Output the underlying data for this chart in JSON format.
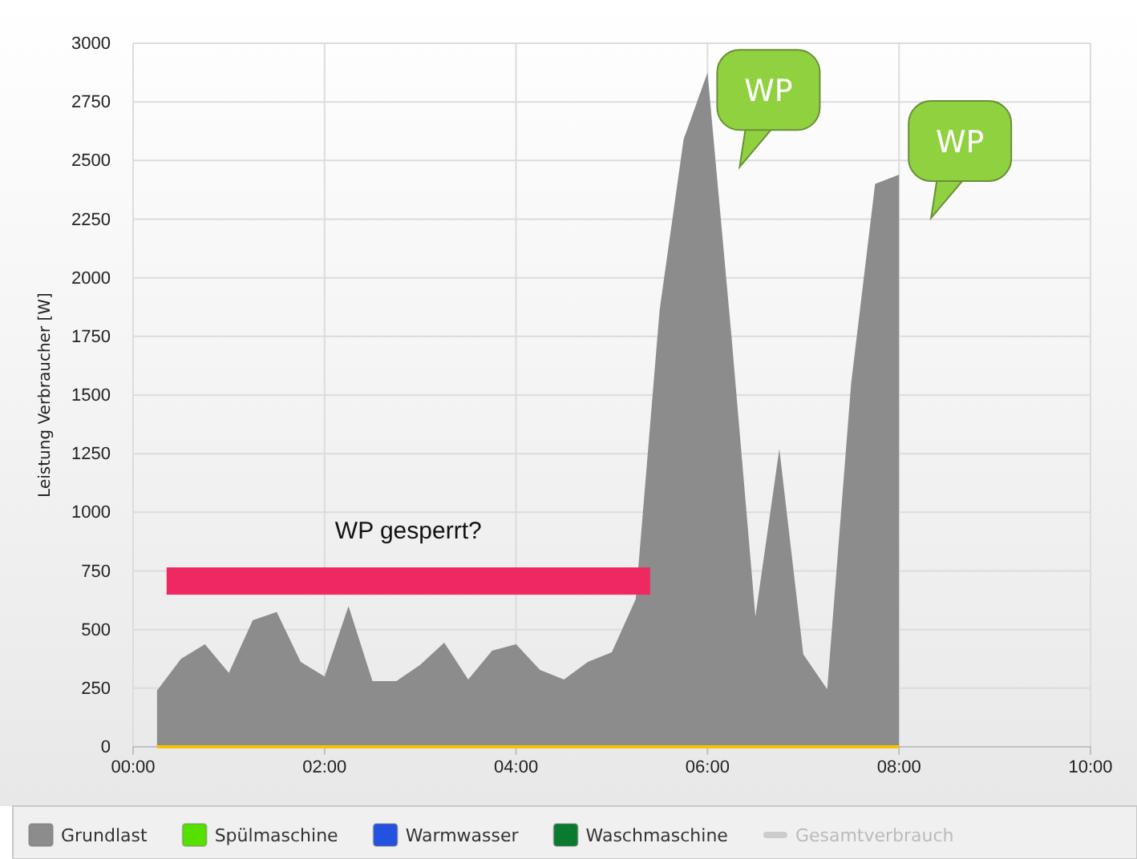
{
  "chart_data": {
    "type": "area",
    "ylabel": "Leistung Verbraucher [W]",
    "x": [
      0.25,
      0.5,
      0.75,
      1,
      1.25,
      1.5,
      1.75,
      2,
      2.25,
      2.5,
      2.75,
      3,
      3.25,
      3.5,
      3.75,
      4,
      4.25,
      4.5,
      4.75,
      5,
      5.25,
      5.5,
      5.75,
      6,
      6.25,
      6.5,
      6.75,
      7,
      7.25,
      7.5,
      7.75,
      8
    ],
    "series": [
      {
        "name": "Grundlast",
        "color": "#8c8c8c",
        "values": [
          240,
          375,
          437,
          315,
          540,
          575,
          362,
          300,
          600,
          280,
          280,
          350,
          444,
          287,
          410,
          437,
          328,
          287,
          362,
          403,
          630,
          1865,
          2590,
          2875,
          1750,
          555,
          1270,
          395,
          245,
          1550,
          2400,
          2440
        ]
      },
      {
        "name": "Spülmaschine",
        "color": "#55e000",
        "values": [
          null,
          null,
          null,
          null,
          null,
          null,
          null,
          null,
          null,
          null,
          null,
          null,
          null,
          null,
          null,
          null,
          null,
          null,
          null,
          null,
          null,
          null,
          null,
          null,
          null,
          null,
          null,
          null,
          null,
          null,
          null,
          null
        ]
      },
      {
        "name": "Warmwasser",
        "color": "#2452e0",
        "values": [
          null,
          null,
          null,
          null,
          null,
          null,
          null,
          null,
          null,
          null,
          null,
          null,
          null,
          null,
          null,
          null,
          null,
          null,
          null,
          null,
          null,
          null,
          null,
          null,
          null,
          null,
          null,
          null,
          null,
          null,
          null,
          null
        ]
      },
      {
        "name": "Waschmaschine",
        "color": "#0a7a30",
        "values": [
          null,
          null,
          null,
          null,
          null,
          null,
          null,
          null,
          null,
          null,
          null,
          null,
          null,
          null,
          null,
          null,
          null,
          null,
          null,
          null,
          null,
          null,
          null,
          null,
          null,
          null,
          null,
          null,
          null,
          null,
          null,
          null
        ]
      },
      {
        "type": "line",
        "color": "#f5c400",
        "values": [
          0,
          0,
          0,
          0,
          0,
          0,
          0,
          0,
          0,
          0,
          0,
          0,
          0,
          0,
          0,
          0,
          0,
          0,
          0,
          0,
          0,
          0,
          0,
          0,
          0,
          0,
          0,
          0,
          0,
          0,
          0,
          0
        ]
      },
      {
        "name": "Gesamtverbrauch",
        "type": "line",
        "color": "#cccccc",
        "values": [
          null,
          null,
          null,
          null,
          null,
          null,
          null,
          null,
          null,
          null,
          null,
          null,
          null,
          null,
          null,
          null,
          null,
          null,
          null,
          null,
          null,
          null,
          null,
          null,
          null,
          null,
          null,
          null,
          null,
          null,
          null,
          null
        ]
      }
    ],
    "xlim": [
      0,
      10
    ],
    "xticks": [
      {
        "value": 0,
        "label": "00:00"
      },
      {
        "value": 2,
        "label": "02:00"
      },
      {
        "value": 4,
        "label": "04:00"
      },
      {
        "value": 6,
        "label": "06:00"
      },
      {
        "value": 8,
        "label": "08:00"
      },
      {
        "value": 10,
        "label": "10:00"
      }
    ],
    "ylim": [
      0,
      3000
    ],
    "yticks": [
      0,
      250,
      500,
      750,
      1000,
      1250,
      1500,
      1750,
      2000,
      2250,
      2500,
      2750,
      3000
    ],
    "grid": true,
    "legend": "bottom",
    "annotations": [
      "WP gesperrt?",
      {
        "text": "WP",
        "x": 6,
        "y": 2875
      },
      {
        "text": "WP",
        "x": 8,
        "y": 2440
      }
    ]
  }
}
